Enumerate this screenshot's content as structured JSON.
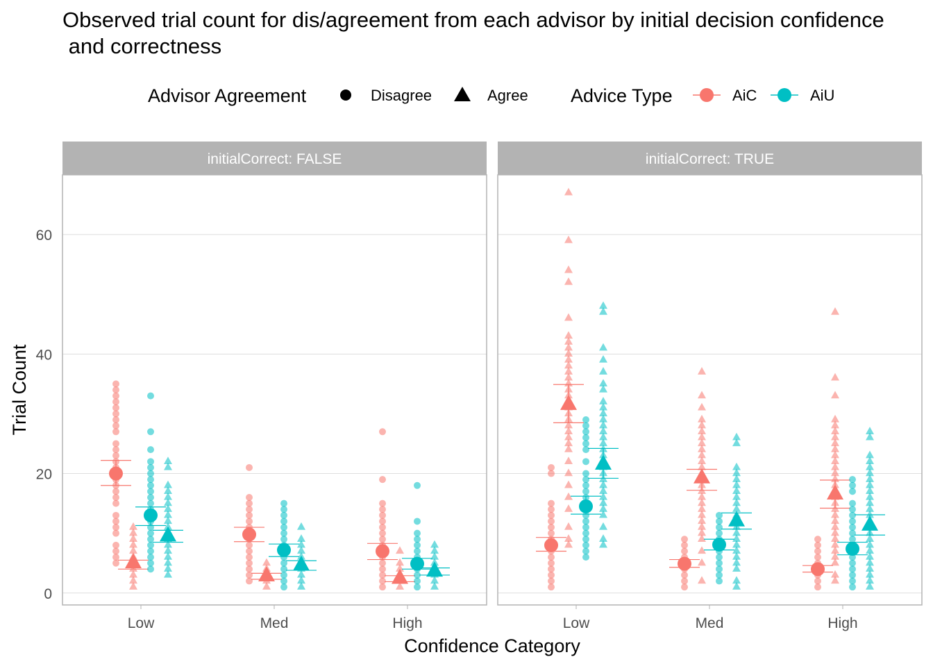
{
  "title_line1": "Observed trial count for dis/agreement from each advisor by initial decision confidence",
  "title_line2": " and correctness",
  "legend": {
    "agreement_title": "Advisor Agreement",
    "agreement_items": [
      {
        "label": "Disagree",
        "shape": "circle"
      },
      {
        "label": "Agree",
        "shape": "triangle"
      }
    ],
    "type_title": "Advice Type",
    "type_items": [
      {
        "label": "AiC",
        "color": "#F8766D"
      },
      {
        "label": "AiU",
        "color": "#00BFC4"
      }
    ]
  },
  "chart_data": {
    "type": "scatter",
    "xlabel": "Confidence Category",
    "ylabel": "Trial Count",
    "categories": [
      "Low",
      "Med",
      "High"
    ],
    "yticks": [
      0,
      20,
      40,
      60
    ],
    "ylim": [
      -2,
      70
    ],
    "grid": true,
    "legend_position": "top",
    "colors": {
      "AiC": "#F8766D",
      "AiU": "#00BFC4"
    },
    "panels": [
      {
        "label": "initialCorrect: FALSE",
        "groups": [
          {
            "category": "Low",
            "advice": "AiC",
            "agreement": "Disagree",
            "mean": 20,
            "ci": [
              18,
              22.2
            ],
            "points": [
              5,
              6,
              7,
              8,
              10,
              11,
              12,
              13,
              15,
              16,
              17,
              18,
              19,
              20,
              21,
              22,
              23,
              24,
              25,
              27,
              28,
              29,
              30,
              31,
              32,
              33,
              34,
              35
            ]
          },
          {
            "category": "Low",
            "advice": "AiC",
            "agreement": "Agree",
            "mean": 5,
            "ci": [
              4,
              5.5
            ],
            "points": [
              1,
              2,
              3,
              4,
              5,
              6,
              7,
              8,
              9,
              10,
              11
            ]
          },
          {
            "category": "Low",
            "advice": "AiU",
            "agreement": "Disagree",
            "mean": 13,
            "ci": [
              11.3,
              14.4
            ],
            "points": [
              4,
              5,
              6,
              7,
              8,
              9,
              10,
              11,
              12,
              13,
              14,
              15,
              16,
              17,
              18,
              19,
              20,
              21,
              22,
              24,
              27,
              33
            ]
          },
          {
            "category": "Low",
            "advice": "AiU",
            "agreement": "Agree",
            "mean": 9.5,
            "ci": [
              8.5,
              10.5
            ],
            "points": [
              3,
              4,
              5,
              6,
              7,
              8,
              9,
              10,
              11,
              12,
              13,
              14,
              15,
              16,
              17,
              18,
              21,
              22
            ]
          },
          {
            "category": "Med",
            "advice": "AiC",
            "agreement": "Disagree",
            "mean": 9.8,
            "ci": [
              8.6,
              11
            ],
            "points": [
              2,
              3,
              4,
              5,
              6,
              7,
              8,
              9,
              10,
              11,
              12,
              13,
              14,
              15,
              16,
              21
            ]
          },
          {
            "category": "Med",
            "advice": "AiC",
            "agreement": "Agree",
            "mean": 2.8,
            "ci": [
              2.3,
              3.3
            ],
            "points": [
              1,
              2,
              3,
              4,
              5
            ]
          },
          {
            "category": "Med",
            "advice": "AiU",
            "agreement": "Disagree",
            "mean": 7.2,
            "ci": [
              6.1,
              8.2
            ],
            "points": [
              1,
              2,
              3,
              4,
              5,
              6,
              7,
              8,
              9,
              10,
              11,
              12,
              13,
              14,
              15
            ]
          },
          {
            "category": "Med",
            "advice": "AiU",
            "agreement": "Agree",
            "mean": 4.6,
            "ci": [
              3.8,
              5.4
            ],
            "points": [
              1,
              2,
              3,
              4,
              5,
              6,
              7,
              8,
              9,
              11
            ]
          },
          {
            "category": "High",
            "advice": "AiC",
            "agreement": "Disagree",
            "mean": 7,
            "ci": [
              5.6,
              8.3
            ],
            "points": [
              1,
              2,
              3,
              4,
              5,
              6,
              7,
              8,
              9,
              10,
              11,
              12,
              13,
              14,
              15,
              19,
              27
            ]
          },
          {
            "category": "High",
            "advice": "AiC",
            "agreement": "Agree",
            "mean": 2.4,
            "ci": [
              1.9,
              2.9
            ],
            "points": [
              1,
              2,
              3,
              4,
              5,
              7
            ]
          },
          {
            "category": "High",
            "advice": "AiU",
            "agreement": "Disagree",
            "mean": 4.9,
            "ci": [
              4,
              5.8
            ],
            "points": [
              1,
              2,
              3,
              4,
              5,
              6,
              7,
              8,
              9,
              10,
              12,
              18
            ]
          },
          {
            "category": "High",
            "advice": "AiU",
            "agreement": "Agree",
            "mean": 3.6,
            "ci": [
              3,
              4.2
            ],
            "points": [
              1,
              2,
              3,
              4,
              5,
              6,
              7,
              8
            ]
          }
        ]
      },
      {
        "label": "initialCorrect: TRUE",
        "groups": [
          {
            "category": "Low",
            "advice": "AiC",
            "agreement": "Disagree",
            "mean": 8,
            "ci": [
              7,
              9.3
            ],
            "points": [
              1,
              2,
              3,
              4,
              5,
              6,
              7,
              8,
              9,
              10,
              11,
              12,
              13,
              14,
              15,
              20,
              21
            ]
          },
          {
            "category": "Low",
            "advice": "AiC",
            "agreement": "Agree",
            "mean": 31.5,
            "ci": [
              28.5,
              34.9
            ],
            "points": [
              8,
              9,
              11,
              14,
              16,
              18,
              20,
              22,
              24,
              25,
              26,
              27,
              28,
              29,
              30,
              31,
              32,
              33,
              34,
              35,
              36,
              37,
              38,
              39,
              40,
              41,
              42,
              43,
              46,
              52,
              54,
              59,
              67
            ]
          },
          {
            "category": "Low",
            "advice": "AiU",
            "agreement": "Disagree",
            "mean": 14.5,
            "ci": [
              13.2,
              16.2
            ],
            "points": [
              6,
              7,
              8,
              9,
              10,
              11,
              12,
              13,
              14,
              15,
              16,
              17,
              18,
              19,
              20,
              22,
              24,
              25,
              26,
              27,
              28,
              29
            ]
          },
          {
            "category": "Low",
            "advice": "AiU",
            "agreement": "Agree",
            "mean": 21.5,
            "ci": [
              19.2,
              24.2
            ],
            "points": [
              8,
              9,
              11,
              13,
              14,
              15,
              16,
              17,
              18,
              19,
              20,
              21,
              22,
              23,
              24,
              25,
              26,
              27,
              28,
              29,
              30,
              31,
              32,
              34,
              35,
              37,
              39,
              41,
              47,
              48
            ]
          },
          {
            "category": "Med",
            "advice": "AiC",
            "agreement": "Disagree",
            "mean": 4.9,
            "ci": [
              4.3,
              5.6
            ],
            "points": [
              1,
              2,
              3,
              4,
              5,
              6,
              7,
              8,
              9
            ]
          },
          {
            "category": "Med",
            "advice": "AiC",
            "agreement": "Agree",
            "mean": 19.2,
            "ci": [
              17.2,
              20.7
            ],
            "points": [
              2,
              5,
              7,
              9,
              10,
              11,
              12,
              13,
              14,
              15,
              16,
              17,
              18,
              19,
              20,
              21,
              22,
              23,
              24,
              25,
              26,
              27,
              28,
              29,
              31,
              33,
              37
            ]
          },
          {
            "category": "Med",
            "advice": "AiU",
            "agreement": "Disagree",
            "mean": 8.1,
            "ci": [
              7.2,
              9
            ],
            "points": [
              2,
              3,
              4,
              5,
              6,
              7,
              8,
              9,
              10,
              11,
              12,
              13
            ]
          },
          {
            "category": "Med",
            "advice": "AiU",
            "agreement": "Agree",
            "mean": 12,
            "ci": [
              10.7,
              13.4
            ],
            "points": [
              1,
              2,
              4,
              5,
              6,
              7,
              8,
              9,
              10,
              11,
              12,
              13,
              14,
              15,
              16,
              17,
              18,
              19,
              20,
              21,
              25,
              26
            ]
          },
          {
            "category": "High",
            "advice": "AiC",
            "agreement": "Disagree",
            "mean": 4,
            "ci": [
              3.5,
              4.6
            ],
            "points": [
              1,
              2,
              3,
              4,
              5,
              6,
              7,
              8,
              9
            ]
          },
          {
            "category": "High",
            "advice": "AiC",
            "agreement": "Agree",
            "mean": 16.5,
            "ci": [
              14.2,
              18.9
            ],
            "points": [
              2,
              3,
              5,
              6,
              7,
              8,
              9,
              10,
              11,
              12,
              13,
              14,
              15,
              16,
              17,
              18,
              19,
              20,
              21,
              22,
              23,
              24,
              25,
              26,
              27,
              28,
              29,
              33,
              36,
              47
            ]
          },
          {
            "category": "High",
            "advice": "AiU",
            "agreement": "Disagree",
            "mean": 7.4,
            "ci": [
              6.4,
              8.5
            ],
            "points": [
              1,
              2,
              3,
              4,
              5,
              6,
              7,
              8,
              9,
              10,
              11,
              12,
              13,
              14,
              15,
              17,
              18,
              19
            ]
          },
          {
            "category": "High",
            "advice": "AiU",
            "agreement": "Agree",
            "mean": 11.3,
            "ci": [
              9.7,
              13.1
            ],
            "points": [
              1,
              2,
              3,
              4,
              5,
              6,
              7,
              8,
              9,
              10,
              11,
              12,
              13,
              14,
              15,
              16,
              17,
              18,
              19,
              20,
              21,
              22,
              23,
              26,
              27
            ]
          }
        ]
      }
    ]
  }
}
